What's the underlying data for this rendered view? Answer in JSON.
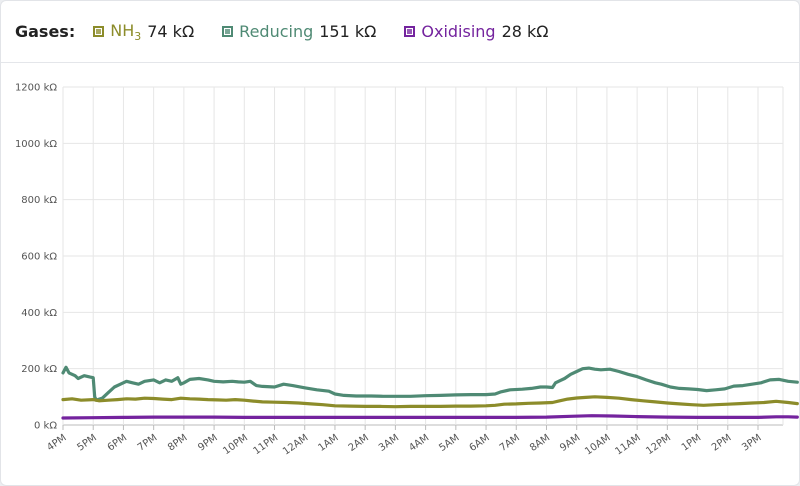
{
  "legend": {
    "title": "Gases:",
    "items": [
      {
        "name": "NH",
        "sub": "3",
        "value": "74 kΩ",
        "color": "#8c8c2a"
      },
      {
        "name": "Reducing",
        "sub": "",
        "value": "151 kΩ",
        "color": "#4f8a74"
      },
      {
        "name": "Oxidising",
        "sub": "",
        "value": "28 kΩ",
        "color": "#74239e"
      }
    ]
  },
  "chart_data": {
    "type": "line",
    "y_ticks": [
      "0 kΩ",
      "200 kΩ",
      "400 kΩ",
      "600 kΩ",
      "800 kΩ",
      "1000 kΩ",
      "1200 kΩ"
    ],
    "ylim": [
      0,
      1200
    ],
    "x_ticks": [
      "4PM",
      "5PM",
      "6PM",
      "7PM",
      "8PM",
      "9PM",
      "10PM",
      "11PM",
      "12AM",
      "1AM",
      "2AM",
      "3AM",
      "4AM",
      "5AM",
      "6AM",
      "7AM",
      "8AM",
      "9AM",
      "10AM",
      "11AM",
      "12PM",
      "1PM",
      "2PM",
      "3PM"
    ],
    "xlim": [
      0,
      24
    ],
    "grid": true,
    "series": [
      {
        "name": "Reducing",
        "color": "#4f8a74",
        "points": [
          [
            0,
            185
          ],
          [
            0.1,
            205
          ],
          [
            0.2,
            185
          ],
          [
            0.4,
            175
          ],
          [
            0.5,
            165
          ],
          [
            0.7,
            175
          ],
          [
            0.9,
            170
          ],
          [
            1.0,
            168
          ],
          [
            1.05,
            100
          ],
          [
            1.1,
            88
          ],
          [
            1.3,
            95
          ],
          [
            1.5,
            115
          ],
          [
            1.7,
            135
          ],
          [
            1.9,
            145
          ],
          [
            2.1,
            155
          ],
          [
            2.3,
            150
          ],
          [
            2.5,
            145
          ],
          [
            2.7,
            155
          ],
          [
            3.0,
            160
          ],
          [
            3.2,
            150
          ],
          [
            3.4,
            160
          ],
          [
            3.6,
            155
          ],
          [
            3.8,
            168
          ],
          [
            3.9,
            145
          ],
          [
            4.0,
            150
          ],
          [
            4.2,
            162
          ],
          [
            4.5,
            165
          ],
          [
            4.8,
            160
          ],
          [
            5.0,
            155
          ],
          [
            5.3,
            153
          ],
          [
            5.6,
            155
          ],
          [
            5.8,
            153
          ],
          [
            6.0,
            152
          ],
          [
            6.2,
            155
          ],
          [
            6.4,
            140
          ],
          [
            6.6,
            137
          ],
          [
            7.0,
            135
          ],
          [
            7.3,
            145
          ],
          [
            7.6,
            140
          ],
          [
            8.0,
            132
          ],
          [
            8.4,
            125
          ],
          [
            8.8,
            120
          ],
          [
            9.0,
            110
          ],
          [
            9.3,
            105
          ],
          [
            9.7,
            103
          ],
          [
            10.2,
            103
          ],
          [
            10.6,
            102
          ],
          [
            11.0,
            102
          ],
          [
            11.5,
            102
          ],
          [
            12.0,
            104
          ],
          [
            12.5,
            105
          ],
          [
            13.0,
            107
          ],
          [
            13.5,
            108
          ],
          [
            14.0,
            108
          ],
          [
            14.3,
            110
          ],
          [
            14.5,
            118
          ],
          [
            14.8,
            125
          ],
          [
            15.2,
            127
          ],
          [
            15.5,
            130
          ],
          [
            15.8,
            135
          ],
          [
            16.0,
            135
          ],
          [
            16.2,
            133
          ],
          [
            16.3,
            150
          ],
          [
            16.6,
            165
          ],
          [
            16.8,
            180
          ],
          [
            17.0,
            190
          ],
          [
            17.2,
            200
          ],
          [
            17.4,
            202
          ],
          [
            17.6,
            198
          ],
          [
            17.8,
            196
          ],
          [
            18.1,
            198
          ],
          [
            18.4,
            190
          ],
          [
            18.7,
            180
          ],
          [
            19.0,
            172
          ],
          [
            19.3,
            160
          ],
          [
            19.6,
            150
          ],
          [
            19.8,
            145
          ],
          [
            20.1,
            135
          ],
          [
            20.4,
            130
          ],
          [
            20.7,
            128
          ],
          [
            21.0,
            126
          ],
          [
            21.3,
            122
          ],
          [
            21.6,
            125
          ],
          [
            21.9,
            128
          ],
          [
            22.2,
            138
          ],
          [
            22.5,
            140
          ],
          [
            22.8,
            145
          ],
          [
            23.1,
            150
          ],
          [
            23.4,
            160
          ],
          [
            23.7,
            162
          ],
          [
            24.0,
            155
          ],
          [
            24.3,
            152
          ]
        ]
      },
      {
        "name": "NH3",
        "color": "#8c8c2a",
        "points": [
          [
            0,
            90
          ],
          [
            0.3,
            93
          ],
          [
            0.6,
            88
          ],
          [
            1.0,
            90
          ],
          [
            1.2,
            86
          ],
          [
            1.5,
            88
          ],
          [
            1.8,
            90
          ],
          [
            2.1,
            93
          ],
          [
            2.4,
            92
          ],
          [
            2.7,
            95
          ],
          [
            3.0,
            94
          ],
          [
            3.3,
            92
          ],
          [
            3.6,
            90
          ],
          [
            3.9,
            95
          ],
          [
            4.2,
            93
          ],
          [
            4.5,
            92
          ],
          [
            4.8,
            90
          ],
          [
            5.1,
            89
          ],
          [
            5.4,
            88
          ],
          [
            5.7,
            90
          ],
          [
            6.0,
            88
          ],
          [
            6.3,
            85
          ],
          [
            6.6,
            82
          ],
          [
            7.0,
            81
          ],
          [
            7.4,
            80
          ],
          [
            7.8,
            78
          ],
          [
            8.2,
            75
          ],
          [
            8.6,
            72
          ],
          [
            9.0,
            68
          ],
          [
            9.5,
            67
          ],
          [
            10.0,
            66
          ],
          [
            10.5,
            66
          ],
          [
            11.0,
            65
          ],
          [
            11.5,
            66
          ],
          [
            12.0,
            66
          ],
          [
            12.5,
            66
          ],
          [
            13.0,
            67
          ],
          [
            13.5,
            67
          ],
          [
            14.0,
            68
          ],
          [
            14.3,
            70
          ],
          [
            14.6,
            74
          ],
          [
            15.0,
            75
          ],
          [
            15.4,
            77
          ],
          [
            15.8,
            78
          ],
          [
            16.2,
            80
          ],
          [
            16.4,
            85
          ],
          [
            16.7,
            92
          ],
          [
            17.0,
            96
          ],
          [
            17.3,
            98
          ],
          [
            17.6,
            100
          ],
          [
            18.0,
            98
          ],
          [
            18.4,
            95
          ],
          [
            18.8,
            90
          ],
          [
            19.2,
            86
          ],
          [
            19.6,
            82
          ],
          [
            20.0,
            78
          ],
          [
            20.4,
            75
          ],
          [
            20.8,
            72
          ],
          [
            21.2,
            70
          ],
          [
            21.6,
            72
          ],
          [
            22.0,
            74
          ],
          [
            22.4,
            76
          ],
          [
            22.8,
            78
          ],
          [
            23.2,
            80
          ],
          [
            23.6,
            84
          ],
          [
            24.0,
            80
          ],
          [
            24.3,
            76
          ]
        ]
      },
      {
        "name": "Oxidising",
        "color": "#74239e",
        "points": [
          [
            0,
            25
          ],
          [
            1,
            26
          ],
          [
            2,
            27
          ],
          [
            3,
            28
          ],
          [
            4,
            28
          ],
          [
            5,
            28
          ],
          [
            6,
            27
          ],
          [
            7,
            27
          ],
          [
            8,
            27
          ],
          [
            9,
            27
          ],
          [
            10,
            27
          ],
          [
            11,
            27
          ],
          [
            12,
            27
          ],
          [
            13,
            27
          ],
          [
            14,
            27
          ],
          [
            15,
            27
          ],
          [
            16,
            28
          ],
          [
            16.8,
            31
          ],
          [
            17.5,
            33
          ],
          [
            18.2,
            32
          ],
          [
            19,
            30
          ],
          [
            20,
            28
          ],
          [
            21,
            27
          ],
          [
            22,
            27
          ],
          [
            23,
            27
          ],
          [
            23.6,
            29
          ],
          [
            24.0,
            29
          ],
          [
            24.3,
            28
          ]
        ]
      }
    ]
  }
}
